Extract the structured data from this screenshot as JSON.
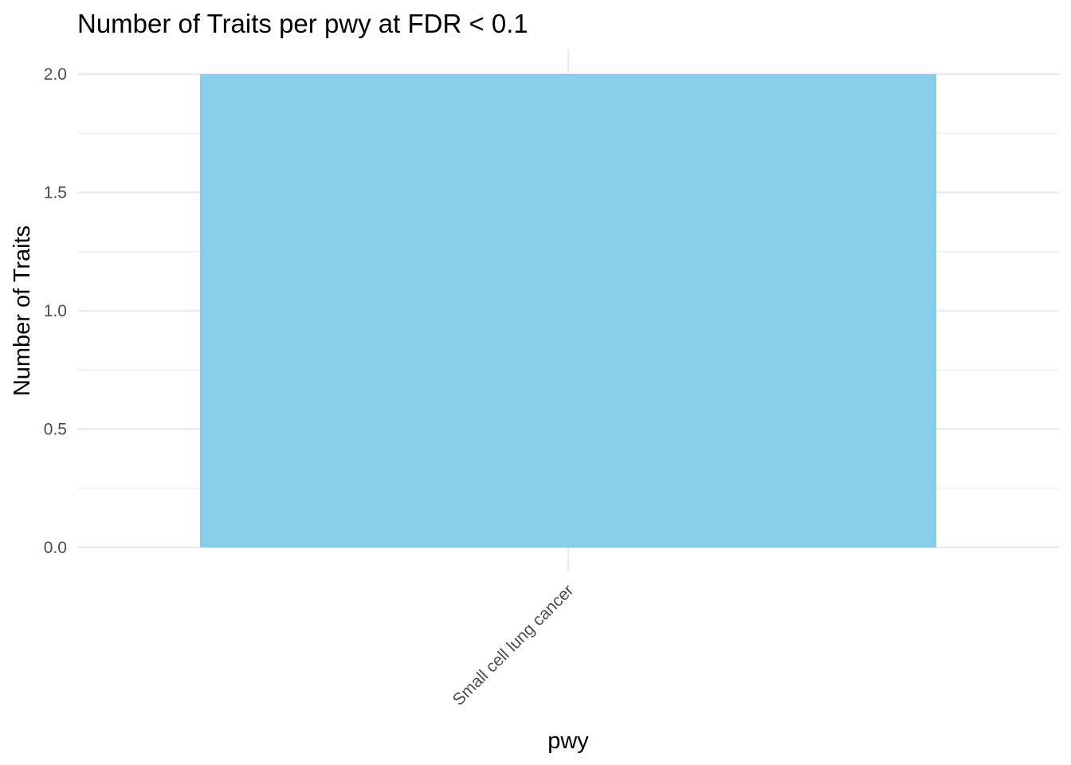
{
  "chart_data": {
    "type": "bar",
    "title": "Number of Traits per pwy at FDR < 0.1",
    "xlabel": "pwy",
    "ylabel": "Number of Traits",
    "categories": [
      "Small cell lung cancer"
    ],
    "values": [
      2
    ],
    "ylim": [
      0,
      2
    ],
    "yticks": [
      0.0,
      0.5,
      1.0,
      1.5,
      2.0
    ],
    "ytick_labels": [
      "0.0",
      "0.5",
      "1.0",
      "1.5",
      "2.0"
    ],
    "bar_color": "#87ceeb",
    "grid": true,
    "legend": "none"
  }
}
